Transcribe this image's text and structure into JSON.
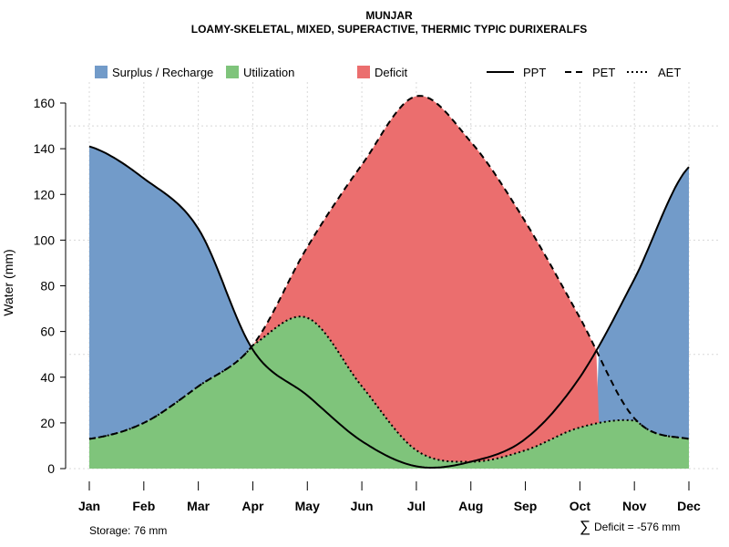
{
  "chart_data": {
    "type": "area",
    "title": "MUNJAR",
    "subtitle": "LOAMY-SKELETAL, MIXED, SUPERACTIVE, THERMIC TYPIC DURIXERALFS",
    "xlabel": "",
    "ylabel": "Water (mm)",
    "ylim": [
      0,
      170
    ],
    "yticks": [
      0,
      20,
      40,
      60,
      80,
      100,
      120,
      140,
      160
    ],
    "categories": [
      "Jan",
      "Feb",
      "Mar",
      "Apr",
      "May",
      "Jun",
      "Jul",
      "Aug",
      "Sep",
      "Oct",
      "Nov",
      "Dec"
    ],
    "series": [
      {
        "name": "PPT",
        "style": "solid",
        "values": [
          141,
          127,
          105,
          52,
          32,
          12,
          1,
          3,
          13,
          40,
          83,
          132
        ]
      },
      {
        "name": "PET",
        "style": "dashed",
        "values": [
          13,
          20,
          36,
          54,
          97,
          133,
          163,
          143,
          108,
          66,
          22,
          13
        ]
      },
      {
        "name": "AET",
        "style": "dotted",
        "values": [
          13,
          20,
          36,
          54,
          66,
          36,
          8,
          3,
          8,
          18,
          21,
          13
        ]
      }
    ],
    "legend": {
      "placement": "top",
      "fills": [
        {
          "label": "Surplus / Recharge",
          "color": "#729bc9"
        },
        {
          "label": "Utilization",
          "color": "#7fc47b"
        },
        {
          "label": "Deficit",
          "color": "#eb6e6e"
        }
      ],
      "lines": [
        "PPT",
        "PET",
        "AET"
      ]
    },
    "grid": true,
    "annotations": {
      "storage": "Storage: 76 mm",
      "deficit": "Deficit = -576 mm",
      "sum_symbol": "∑"
    }
  }
}
